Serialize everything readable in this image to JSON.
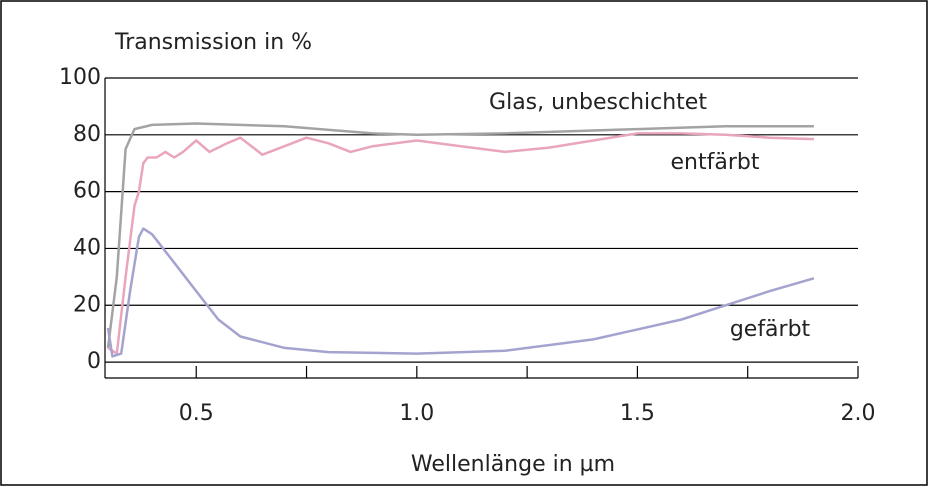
{
  "chart_data": {
    "type": "line",
    "title": "Transmission in %",
    "x_label": "Wellenlänge in µm",
    "xlim": [
      0.3,
      2.0
    ],
    "ylim": [
      -5.6,
      100
    ],
    "xticks": [
      0.5,
      {
        "value": 1.0,
        "label": "1.0"
      },
      1.5,
      {
        "value": 2.0,
        "label": "2.0"
      }
    ],
    "minor_xticks": [
      0.75,
      1.25,
      1.75
    ],
    "yticks": [
      0,
      20,
      40,
      60,
      80,
      100
    ],
    "grid": true,
    "series": [
      {
        "name": "Glas, unbeschichtet",
        "color": "#a3a3a3",
        "x": [
          0.3,
          0.32,
          0.34,
          0.36,
          0.4,
          0.5,
          0.7,
          0.9,
          1.0,
          1.2,
          1.5,
          1.7,
          1.9
        ],
        "values": [
          5,
          30,
          75,
          82,
          83.5,
          84,
          83,
          80.5,
          80,
          80.5,
          82,
          83,
          83
        ]
      },
      {
        "name": "entfärbt",
        "color": "#e9a5bd",
        "x": [
          0.3,
          0.32,
          0.34,
          0.36,
          0.37,
          0.38,
          0.39,
          0.41,
          0.43,
          0.45,
          0.47,
          0.5,
          0.53,
          0.57,
          0.6,
          0.65,
          0.7,
          0.75,
          0.8,
          0.85,
          0.9,
          1.0,
          1.1,
          1.2,
          1.3,
          1.4,
          1.5,
          1.6,
          1.7,
          1.8,
          1.9
        ],
        "values": [
          5,
          3,
          30,
          55,
          60,
          70,
          72,
          72,
          74,
          72,
          74,
          78,
          74,
          77,
          79,
          73,
          76,
          79,
          77,
          74,
          76,
          78,
          76,
          74,
          75.5,
          78,
          80.5,
          80.5,
          80,
          79,
          78.5
        ]
      },
      {
        "name": "gefärbt",
        "color": "#a4a3cf",
        "x": [
          0.3,
          0.31,
          0.33,
          0.35,
          0.37,
          0.38,
          0.4,
          0.45,
          0.5,
          0.55,
          0.6,
          0.7,
          0.8,
          1.0,
          1.2,
          1.4,
          1.6,
          1.7,
          1.8,
          1.9
        ],
        "values": [
          12,
          2,
          3,
          25,
          44,
          47,
          45,
          35,
          25,
          15,
          9,
          5,
          3.5,
          3,
          4,
          8,
          15,
          20,
          25,
          29.5
        ]
      }
    ]
  }
}
